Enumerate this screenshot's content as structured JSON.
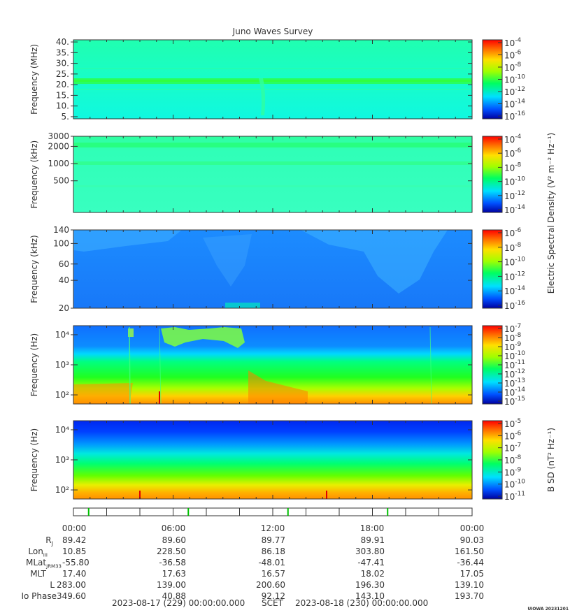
{
  "title": "Juno Waves Survey",
  "colors": {
    "background": "#ffffff",
    "axis": "#333333",
    "tick_green": "#00c000"
  },
  "panels": [
    {
      "ylabel": "Frequency (MHz)",
      "scale": "linear",
      "ylim": [
        4,
        41
      ],
      "yticks": [
        5,
        10,
        15,
        20,
        25,
        30,
        35,
        40
      ],
      "ytick_labels": [
        "5.",
        "10.",
        "15.",
        "20.",
        "25.",
        "30.",
        "35.",
        "40."
      ],
      "cbar_ticks": [
        "-4",
        "-6",
        "-8",
        "-10",
        "-12",
        "-14",
        "-16"
      ],
      "cbar_label": ""
    },
    {
      "ylabel": "Frequency (kHz)",
      "scale": "log",
      "ylim": [
        140,
        3000
      ],
      "yticks": [
        500,
        1000,
        2000,
        3000
      ],
      "ytick_labels": [
        "500",
        "1000",
        "2000",
        "3000"
      ],
      "cbar_ticks": [
        "-4",
        "-6",
        "-8",
        "-10",
        "-12",
        "-14"
      ],
      "cbar_label": "Electric Spectral Density (V² m⁻² Hz⁻¹)"
    },
    {
      "ylabel": "Frequency (kHz)",
      "scale": "log",
      "ylim": [
        20,
        140
      ],
      "yticks": [
        20,
        40,
        60,
        100,
        140
      ],
      "ytick_labels": [
        "20",
        "40",
        "60",
        "100",
        "140"
      ],
      "cbar_ticks": [
        "-6",
        "-8",
        "-10",
        "-12",
        "-14",
        "-16"
      ],
      "cbar_label": ""
    },
    {
      "ylabel": "Frequency (Hz)",
      "scale": "log",
      "ylim": [
        50,
        20000
      ],
      "yticks": [
        100,
        1000,
        10000
      ],
      "ytick_labels": [
        "10²",
        "10³",
        "10⁴"
      ],
      "cbar_ticks": [
        "-7",
        "-8",
        "-9",
        "-10",
        "-11",
        "-12",
        "-13",
        "-14",
        "-15"
      ],
      "cbar_label": ""
    },
    {
      "ylabel": "Frequency (Hz)",
      "scale": "log",
      "ylim": [
        50,
        20000
      ],
      "yticks": [
        100,
        1000,
        10000
      ],
      "ytick_labels": [
        "10²",
        "10³",
        "10⁴"
      ],
      "cbar_ticks": [
        "-5",
        "-6",
        "-7",
        "-8",
        "-9",
        "-10",
        "-11"
      ],
      "cbar_label": "B SD (nT² Hz⁻¹)"
    }
  ],
  "chart_data": {
    "type": "heatmap",
    "title": "Juno Waves Survey",
    "x_tick_labels": [
      "00:00",
      "06:00",
      "12:00",
      "18:00",
      "00:00"
    ],
    "x_hours": [
      0,
      6,
      12,
      18,
      24
    ],
    "colorbar_base": "10",
    "colormap": "rainbow (blue-cyan-green-yellow-red)",
    "features": [
      {
        "panel": 0,
        "description": "persistent narrow band",
        "freq": 21
      },
      {
        "panel": 1,
        "description": "persistent bands",
        "freq": [
          2000,
          1000
        ]
      },
      {
        "panel": 3,
        "description": "high-frequency emission near upper edge",
        "hours": [
          5.5,
          11
        ]
      }
    ]
  },
  "ephemeris": {
    "rows": [
      {
        "label": "R",
        "sub": "J",
        "values": [
          "89.42",
          "89.60",
          "89.77",
          "89.91",
          "90.03"
        ]
      },
      {
        "label": "Lon",
        "sub": "III",
        "values": [
          "10.85",
          "228.50",
          "86.18",
          "303.80",
          "161.50"
        ]
      },
      {
        "label": "MLat",
        "sub": "JRM33",
        "values": [
          "-55.80",
          "-36.58",
          "-48.01",
          "-47.41",
          "-36.44"
        ]
      },
      {
        "label": "MLT",
        "sub": "",
        "values": [
          "17.40",
          "17.63",
          "16.57",
          "18.02",
          "17.05"
        ]
      },
      {
        "label": "L",
        "sub": "",
        "values": [
          "283.00",
          "139.00",
          "200.60",
          "196.30",
          "139.10"
        ]
      },
      {
        "label": "Io Phase",
        "sub": "",
        "values": [
          "349.60",
          "40.88",
          "92.12",
          "143.10",
          "193.70"
        ]
      }
    ],
    "start_date": "2023-08-17 (229) 00:00:00.000",
    "scet_label": "SCET",
    "end_date": "2023-08-18 (230) 00:00:00.000"
  },
  "stamp": "UIOWA 20231201"
}
